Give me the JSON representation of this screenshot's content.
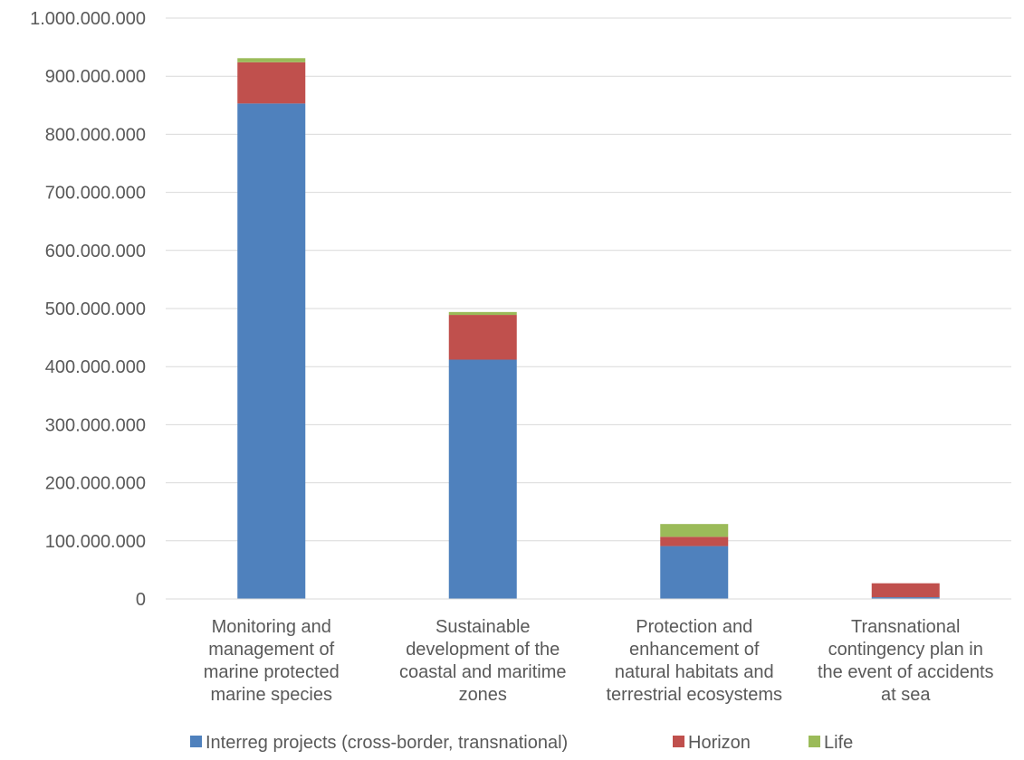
{
  "chart_data": {
    "type": "bar",
    "stacked": true,
    "categories": [
      [
        "Monitoring and",
        "management of",
        "marine protected",
        "marine species"
      ],
      [
        "Sustainable",
        "development of the",
        "coastal and maritime",
        "zones"
      ],
      [
        "Protection and",
        "enhancement of",
        "natural habitats and",
        "terrestrial ecosystems"
      ],
      [
        "Transnational",
        "contingency plan in",
        "the event of accidents",
        "at sea"
      ]
    ],
    "series": [
      {
        "name": "Interreg projects (cross-border, transnational)",
        "color": "#4f81bd",
        "values": [
          853000000,
          412000000,
          91000000,
          3000000
        ]
      },
      {
        "name": "Horizon",
        "color": "#c0504d",
        "values": [
          71000000,
          77000000,
          16000000,
          24000000
        ]
      },
      {
        "name": "Life",
        "color": "#9bbb59",
        "values": [
          7000000,
          5000000,
          22000000,
          0
        ]
      }
    ],
    "ylim": [
      0,
      1000000000
    ],
    "yticks": [
      0,
      100000000,
      200000000,
      300000000,
      400000000,
      500000000,
      600000000,
      700000000,
      800000000,
      900000000,
      1000000000
    ],
    "ytick_labels": [
      "0",
      "100.000.000",
      "200.000.000",
      "300.000.000",
      "400.000.000",
      "500.000.000",
      "600.000.000",
      "700.000.000",
      "800.000.000",
      "900.000.000",
      "1.000.000.000"
    ],
    "grid": true,
    "legend_position": "bottom"
  }
}
